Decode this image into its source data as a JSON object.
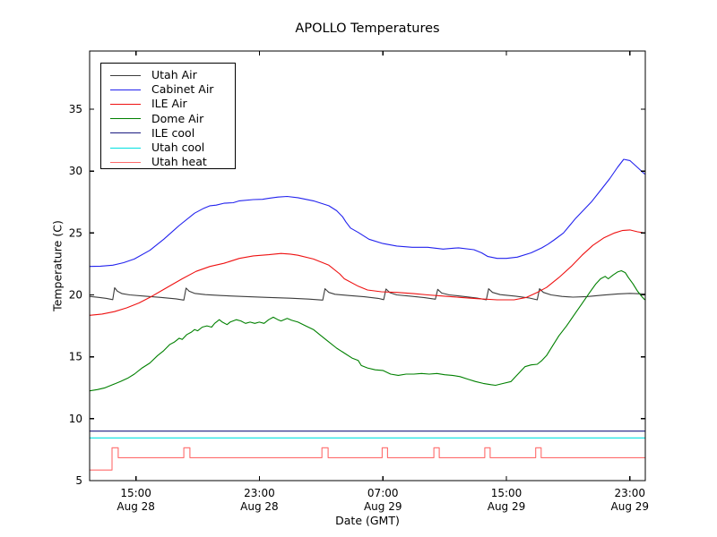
{
  "chart_data": {
    "type": "line",
    "title": "APOLLO Temperatures",
    "xlabel": "Date (GMT)",
    "ylabel": "Temperature (C)",
    "xlim": [
      0,
      36
    ],
    "ylim": [
      5,
      39.7
    ],
    "x_unit_note": "x measured in hours after Aug 28 12:00 GMT",
    "grid": false,
    "legend_position": "upper left",
    "y_ticks": [
      5,
      10,
      15,
      20,
      25,
      30,
      35
    ],
    "x_ticks": [
      {
        "h": 3,
        "time": "15:00",
        "date": "Aug 28"
      },
      {
        "h": 11,
        "time": "23:00",
        "date": "Aug 28"
      },
      {
        "h": 19,
        "time": "07:00",
        "date": "Aug 29"
      },
      {
        "h": 27,
        "time": "15:00",
        "date": "Aug 29"
      },
      {
        "h": 35,
        "time": "23:00",
        "date": "Aug 29"
      }
    ],
    "series": [
      {
        "name": "Utah Air",
        "color": "#3c3c3c",
        "points": [
          [
            0,
            19.88
          ],
          [
            0.6,
            19.8
          ],
          [
            1.1,
            19.72
          ],
          [
            1.5,
            19.62
          ],
          [
            1.62,
            20.58
          ],
          [
            1.8,
            20.3
          ],
          [
            2.1,
            20.1
          ],
          [
            2.6,
            20.0
          ],
          [
            3.6,
            19.9
          ],
          [
            4.6,
            19.8
          ],
          [
            5.6,
            19.68
          ],
          [
            6.1,
            19.58
          ],
          [
            6.25,
            20.55
          ],
          [
            6.45,
            20.3
          ],
          [
            6.8,
            20.12
          ],
          [
            7.5,
            20.02
          ],
          [
            8.5,
            19.95
          ],
          [
            10,
            19.87
          ],
          [
            11.5,
            19.8
          ],
          [
            13,
            19.73
          ],
          [
            14.2,
            19.66
          ],
          [
            15.1,
            19.58
          ],
          [
            15.25,
            20.5
          ],
          [
            15.5,
            20.2
          ],
          [
            15.9,
            20.05
          ],
          [
            16.8,
            19.95
          ],
          [
            17.8,
            19.85
          ],
          [
            18.7,
            19.72
          ],
          [
            19.05,
            19.62
          ],
          [
            19.2,
            20.48
          ],
          [
            19.45,
            20.18
          ],
          [
            19.9,
            20.0
          ],
          [
            20.8,
            19.9
          ],
          [
            21.7,
            19.78
          ],
          [
            22.4,
            19.65
          ],
          [
            22.55,
            20.45
          ],
          [
            22.8,
            20.15
          ],
          [
            23.3,
            20.0
          ],
          [
            24.2,
            19.88
          ],
          [
            25.1,
            19.75
          ],
          [
            25.7,
            19.6
          ],
          [
            25.85,
            20.5
          ],
          [
            26.1,
            20.2
          ],
          [
            26.6,
            20.02
          ],
          [
            27.6,
            19.9
          ],
          [
            28.5,
            19.75
          ],
          [
            29.0,
            19.6
          ],
          [
            29.15,
            20.5
          ],
          [
            29.4,
            20.2
          ],
          [
            29.9,
            20.0
          ],
          [
            30.6,
            19.88
          ],
          [
            31.3,
            19.82
          ],
          [
            32.2,
            19.86
          ],
          [
            33.2,
            19.98
          ],
          [
            34.2,
            20.08
          ],
          [
            35.0,
            20.12
          ],
          [
            35.97,
            20.08
          ]
        ]
      },
      {
        "name": "Cabinet Air",
        "color": "#2222ee",
        "points": [
          [
            0,
            22.3
          ],
          [
            0.7,
            22.32
          ],
          [
            1.5,
            22.4
          ],
          [
            2.2,
            22.6
          ],
          [
            2.9,
            22.9
          ],
          [
            3.9,
            23.6
          ],
          [
            4.8,
            24.5
          ],
          [
            5.8,
            25.6
          ],
          [
            6.8,
            26.6
          ],
          [
            7.4,
            27.0
          ],
          [
            7.8,
            27.2
          ],
          [
            8.2,
            27.25
          ],
          [
            8.7,
            27.4
          ],
          [
            9.3,
            27.45
          ],
          [
            9.7,
            27.6
          ],
          [
            10.6,
            27.7
          ],
          [
            11.2,
            27.72
          ],
          [
            11.6,
            27.8
          ],
          [
            12.2,
            27.9
          ],
          [
            12.8,
            27.95
          ],
          [
            13.5,
            27.85
          ],
          [
            14.5,
            27.6
          ],
          [
            15.5,
            27.2
          ],
          [
            16.0,
            26.8
          ],
          [
            16.4,
            26.3
          ],
          [
            16.6,
            25.9
          ],
          [
            16.9,
            25.4
          ],
          [
            17.4,
            25.05
          ],
          [
            18.1,
            24.5
          ],
          [
            19.0,
            24.15
          ],
          [
            19.9,
            23.95
          ],
          [
            20.9,
            23.85
          ],
          [
            21.9,
            23.85
          ],
          [
            22.9,
            23.7
          ],
          [
            23.9,
            23.8
          ],
          [
            24.9,
            23.65
          ],
          [
            25.4,
            23.4
          ],
          [
            25.8,
            23.1
          ],
          [
            26.4,
            22.95
          ],
          [
            27.0,
            22.95
          ],
          [
            27.7,
            23.05
          ],
          [
            28.6,
            23.4
          ],
          [
            29.3,
            23.8
          ],
          [
            29.7,
            24.1
          ],
          [
            30.1,
            24.45
          ],
          [
            30.7,
            25.0
          ],
          [
            31.5,
            26.2
          ],
          [
            32.5,
            27.5
          ],
          [
            33.2,
            28.6
          ],
          [
            33.7,
            29.4
          ],
          [
            34.2,
            30.3
          ],
          [
            34.6,
            30.95
          ],
          [
            35.0,
            30.85
          ],
          [
            35.4,
            30.4
          ],
          [
            35.97,
            29.75
          ]
        ]
      },
      {
        "name": "ILE Air",
        "color": "#ee1111",
        "points": [
          [
            0,
            18.35
          ],
          [
            0.8,
            18.45
          ],
          [
            1.6,
            18.65
          ],
          [
            2.4,
            18.95
          ],
          [
            3.2,
            19.35
          ],
          [
            3.9,
            19.8
          ],
          [
            4.6,
            20.3
          ],
          [
            5.3,
            20.8
          ],
          [
            6.0,
            21.3
          ],
          [
            6.9,
            21.9
          ],
          [
            7.8,
            22.3
          ],
          [
            8.7,
            22.55
          ],
          [
            9.7,
            22.95
          ],
          [
            10.6,
            23.15
          ],
          [
            11.6,
            23.25
          ],
          [
            12.4,
            23.35
          ],
          [
            13.0,
            23.3
          ],
          [
            13.5,
            23.2
          ],
          [
            14.5,
            22.9
          ],
          [
            15.5,
            22.4
          ],
          [
            16.2,
            21.7
          ],
          [
            16.5,
            21.3
          ],
          [
            17.4,
            20.7
          ],
          [
            18.0,
            20.4
          ],
          [
            18.9,
            20.25
          ],
          [
            19.9,
            20.2
          ],
          [
            21.0,
            20.1
          ],
          [
            21.9,
            20.0
          ],
          [
            23.0,
            19.9
          ],
          [
            24.0,
            19.8
          ],
          [
            25.1,
            19.7
          ],
          [
            26.4,
            19.6
          ],
          [
            27.5,
            19.6
          ],
          [
            28.3,
            19.8
          ],
          [
            29.0,
            20.2
          ],
          [
            29.6,
            20.6
          ],
          [
            30.4,
            21.4
          ],
          [
            31.2,
            22.3
          ],
          [
            31.9,
            23.2
          ],
          [
            32.6,
            24.0
          ],
          [
            33.3,
            24.6
          ],
          [
            34.0,
            25.0
          ],
          [
            34.5,
            25.2
          ],
          [
            35.0,
            25.25
          ],
          [
            35.5,
            25.1
          ],
          [
            35.97,
            25.0
          ]
        ]
      },
      {
        "name": "Dome Air",
        "color": "#008000",
        "points": [
          [
            0,
            12.25
          ],
          [
            0.5,
            12.35
          ],
          [
            1.0,
            12.5
          ],
          [
            1.5,
            12.75
          ],
          [
            2.0,
            13.0
          ],
          [
            2.5,
            13.3
          ],
          [
            2.9,
            13.6
          ],
          [
            3.4,
            14.1
          ],
          [
            3.9,
            14.5
          ],
          [
            4.4,
            15.1
          ],
          [
            4.8,
            15.5
          ],
          [
            5.2,
            16.0
          ],
          [
            5.5,
            16.2
          ],
          [
            5.8,
            16.5
          ],
          [
            6.0,
            16.4
          ],
          [
            6.3,
            16.8
          ],
          [
            6.6,
            17.0
          ],
          [
            6.8,
            17.2
          ],
          [
            7.0,
            17.1
          ],
          [
            7.3,
            17.4
          ],
          [
            7.6,
            17.5
          ],
          [
            7.9,
            17.4
          ],
          [
            8.1,
            17.7
          ],
          [
            8.4,
            18.0
          ],
          [
            8.6,
            17.8
          ],
          [
            8.9,
            17.6
          ],
          [
            9.1,
            17.8
          ],
          [
            9.5,
            18.0
          ],
          [
            9.8,
            17.9
          ],
          [
            10.1,
            17.7
          ],
          [
            10.4,
            17.8
          ],
          [
            10.7,
            17.7
          ],
          [
            11.0,
            17.8
          ],
          [
            11.3,
            17.7
          ],
          [
            11.6,
            18.0
          ],
          [
            11.9,
            18.2
          ],
          [
            12.2,
            18.0
          ],
          [
            12.4,
            17.9
          ],
          [
            12.8,
            18.1
          ],
          [
            13.1,
            17.95
          ],
          [
            13.5,
            17.8
          ],
          [
            14.0,
            17.5
          ],
          [
            14.5,
            17.2
          ],
          [
            15.0,
            16.7
          ],
          [
            15.5,
            16.2
          ],
          [
            16.0,
            15.7
          ],
          [
            16.5,
            15.3
          ],
          [
            17.0,
            14.9
          ],
          [
            17.4,
            14.7
          ],
          [
            17.6,
            14.3
          ],
          [
            18.0,
            14.1
          ],
          [
            18.5,
            13.95
          ],
          [
            19.0,
            13.9
          ],
          [
            19.5,
            13.6
          ],
          [
            20.0,
            13.5
          ],
          [
            20.5,
            13.6
          ],
          [
            21.0,
            13.6
          ],
          [
            21.5,
            13.65
          ],
          [
            22.0,
            13.6
          ],
          [
            22.5,
            13.65
          ],
          [
            23.0,
            13.55
          ],
          [
            23.5,
            13.5
          ],
          [
            24.0,
            13.4
          ],
          [
            24.5,
            13.2
          ],
          [
            25.0,
            13.0
          ],
          [
            25.5,
            12.85
          ],
          [
            26.0,
            12.75
          ],
          [
            26.3,
            12.7
          ],
          [
            26.8,
            12.85
          ],
          [
            27.3,
            13.0
          ],
          [
            27.6,
            13.4
          ],
          [
            27.9,
            13.8
          ],
          [
            28.2,
            14.2
          ],
          [
            28.6,
            14.35
          ],
          [
            29.0,
            14.4
          ],
          [
            29.3,
            14.7
          ],
          [
            29.6,
            15.1
          ],
          [
            30.0,
            15.9
          ],
          [
            30.4,
            16.7
          ],
          [
            30.9,
            17.5
          ],
          [
            31.4,
            18.4
          ],
          [
            31.9,
            19.3
          ],
          [
            32.4,
            20.2
          ],
          [
            32.8,
            20.9
          ],
          [
            33.1,
            21.3
          ],
          [
            33.4,
            21.5
          ],
          [
            33.6,
            21.3
          ],
          [
            33.9,
            21.6
          ],
          [
            34.2,
            21.85
          ],
          [
            34.45,
            21.95
          ],
          [
            34.7,
            21.8
          ],
          [
            34.9,
            21.4
          ],
          [
            35.2,
            20.9
          ],
          [
            35.5,
            20.3
          ],
          [
            35.75,
            19.9
          ],
          [
            35.97,
            19.6
          ]
        ]
      },
      {
        "name": "ILE cool",
        "color": "#1a1a80",
        "points": [
          [
            0,
            9.0
          ],
          [
            35.97,
            9.0
          ]
        ]
      },
      {
        "name": "Utah cool",
        "color": "#00e0e0",
        "points": [
          [
            0,
            8.45
          ],
          [
            35.97,
            8.45
          ]
        ]
      },
      {
        "name": "Utah heat",
        "color": "#ff6b6b",
        "points": [
          [
            0,
            5.85
          ],
          [
            1.45,
            5.85
          ],
          [
            1.45,
            7.65
          ],
          [
            1.85,
            7.65
          ],
          [
            1.85,
            6.85
          ],
          [
            6.1,
            6.85
          ],
          [
            6.1,
            7.65
          ],
          [
            6.5,
            7.65
          ],
          [
            6.5,
            6.85
          ],
          [
            15.05,
            6.85
          ],
          [
            15.05,
            7.65
          ],
          [
            15.45,
            7.65
          ],
          [
            15.45,
            6.85
          ],
          [
            18.95,
            6.85
          ],
          [
            18.95,
            7.65
          ],
          [
            19.3,
            7.65
          ],
          [
            19.3,
            6.85
          ],
          [
            22.3,
            6.85
          ],
          [
            22.3,
            7.65
          ],
          [
            22.65,
            7.65
          ],
          [
            22.65,
            6.85
          ],
          [
            25.6,
            6.85
          ],
          [
            25.6,
            7.65
          ],
          [
            25.95,
            7.65
          ],
          [
            25.95,
            6.85
          ],
          [
            28.9,
            6.85
          ],
          [
            28.9,
            7.65
          ],
          [
            29.25,
            7.65
          ],
          [
            29.25,
            6.85
          ],
          [
            35.97,
            6.85
          ]
        ]
      }
    ]
  }
}
